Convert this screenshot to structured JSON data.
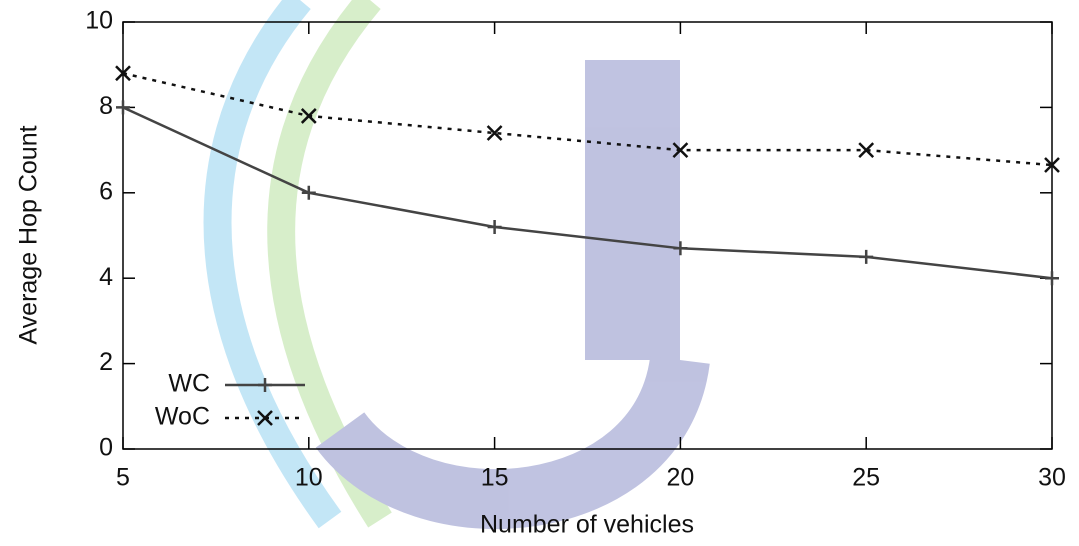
{
  "chart_data": {
    "type": "line",
    "xlabel": "Number of vehicles",
    "ylabel": "Average Hop Count",
    "x": [
      5,
      10,
      15,
      20,
      25,
      30
    ],
    "series": [
      {
        "name": "WC",
        "color": "#444444",
        "marker": "plus",
        "dash": "solid",
        "values": [
          8,
          6,
          5.2,
          4.7,
          4.5,
          4.0
        ]
      },
      {
        "name": "WoC",
        "color": "#111111",
        "marker": "cross",
        "dash": "dotted",
        "values": [
          8.8,
          7.8,
          7.4,
          7.0,
          7.0,
          6.65
        ]
      }
    ],
    "xlim": [
      5,
      30
    ],
    "xticks": [
      5,
      10,
      15,
      20,
      25,
      30
    ],
    "ylim": [
      0,
      10
    ],
    "yticks": [
      0,
      2,
      4,
      6,
      8,
      10
    ],
    "grid": false,
    "legend": "lower left"
  }
}
